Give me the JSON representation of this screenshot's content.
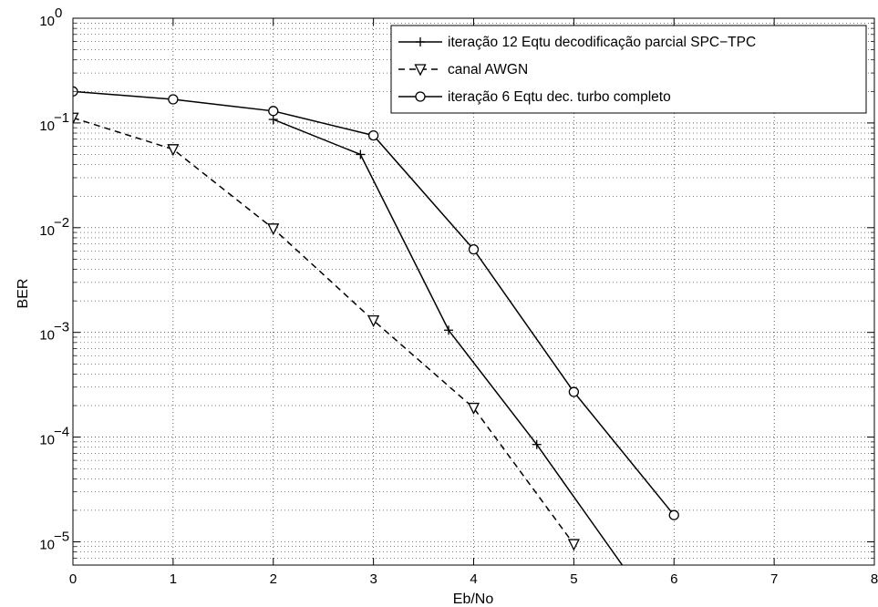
{
  "chart_data": {
    "type": "line",
    "xlabel": "Eb/No",
    "ylabel": "BER",
    "xlim": [
      0,
      8
    ],
    "ylim": [
      6e-06,
      1
    ],
    "yscale": "log",
    "grid": true,
    "legend_position": "top-right",
    "x_ticks": [
      "0",
      "1",
      "2",
      "3",
      "4",
      "5",
      "6",
      "7",
      "8"
    ],
    "y_ticks": [
      {
        "base": "10",
        "exp": "0",
        "value": 1
      },
      {
        "base": "10",
        "exp": "−1",
        "value": 0.1
      },
      {
        "base": "10",
        "exp": "−2",
        "value": 0.01
      },
      {
        "base": "10",
        "exp": "−3",
        "value": 0.001
      },
      {
        "base": "10",
        "exp": "−4",
        "value": 0.0001
      },
      {
        "base": "10",
        "exp": "−5",
        "value": 1e-05
      }
    ],
    "series": [
      {
        "name": "iteração 12 Eqtu decodificação parcial SPC−TPC",
        "marker": "plus",
        "line_style": "solid",
        "color": "#000000",
        "x": [
          2.0,
          2.87,
          3.75,
          4.63,
          5.5
        ],
        "y": [
          0.108,
          0.05,
          0.00105,
          8.5e-05,
          5.7e-06
        ]
      },
      {
        "name": "canal AWGN",
        "marker": "triangle-down",
        "line_style": "dashed",
        "color": "#000000",
        "x": [
          0,
          1,
          2,
          3,
          4,
          5
        ],
        "y": [
          0.112,
          0.056,
          0.0098,
          0.0013,
          0.00019,
          9.5e-06
        ]
      },
      {
        "name": "iteração 6 Eqtu dec. turbo completo",
        "marker": "circle",
        "line_style": "solid",
        "color": "#000000",
        "x": [
          0,
          1,
          2,
          3,
          4,
          5,
          6
        ],
        "y": [
          0.2,
          0.168,
          0.13,
          0.076,
          0.0062,
          0.00027,
          1.8e-05
        ]
      }
    ]
  }
}
